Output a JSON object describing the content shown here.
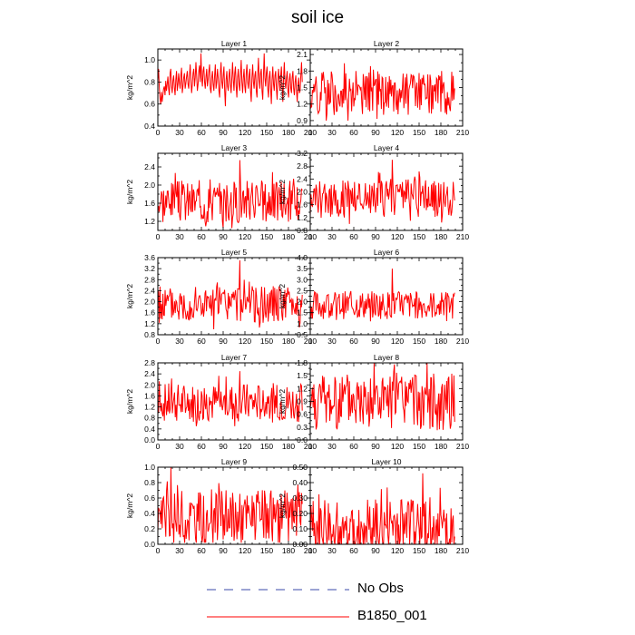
{
  "page": {
    "title": "soil ice"
  },
  "legend": {
    "items": [
      {
        "label": "No Obs",
        "color": "#3a4aa8",
        "style": "dashed"
      },
      {
        "label": "B1850_001",
        "color": "#ff0000",
        "style": "solid"
      }
    ]
  },
  "chart_data": [
    {
      "type": "line",
      "title": "Layer 1",
      "ylabel": "kg/m^2",
      "xlim": [
        0,
        210
      ],
      "ylim": [
        0.4,
        1.1
      ],
      "xticks": [
        0,
        30,
        60,
        90,
        120,
        150,
        180,
        210
      ],
      "yticks": [
        0.4,
        0.6,
        0.8,
        1.0
      ],
      "ytick_labels": [
        "0.4",
        "0.6",
        "0.8",
        "1.0"
      ],
      "series": [
        {
          "color": "#ff0000",
          "x_range": [
            0,
            199
          ],
          "mean": 0.82,
          "amp": 0.12,
          "min": 0.55,
          "max": 1.06,
          "values": [
            0.82,
            0.92,
            0.76,
            0.65,
            0.6,
            0.71,
            0.62,
            0.68,
            0.74,
            0.76,
            0.68,
            0.81,
            0.72,
            0.78,
            0.85,
            0.74,
            0.68,
            0.88,
            0.92,
            0.76,
            0.7,
            0.81,
            0.86,
            0.75,
            0.68,
            0.82,
            0.9,
            0.72,
            0.78,
            0.88,
            0.8,
            0.74,
            0.86,
            0.93,
            0.7,
            0.76,
            0.84,
            0.88,
            0.74,
            0.79,
            0.85,
            0.9,
            0.78,
            0.74,
            0.86,
            0.96,
            0.82,
            0.7,
            0.78,
            0.88,
            0.92,
            0.76,
            0.84,
            0.98,
            0.86,
            0.72,
            0.78,
            0.9,
            0.95,
            0.8,
            1.06,
            0.84,
            0.76,
            0.9,
            0.94,
            0.8,
            0.74,
            0.85,
            0.92,
            0.76,
            0.82,
            0.9,
            0.96,
            0.74,
            0.7,
            0.84,
            0.9,
            0.78,
            0.72,
            0.86,
            0.96,
            0.74,
            0.8,
            0.92,
            0.84,
            0.72,
            0.66,
            0.88,
            0.98,
            0.8,
            0.74,
            0.86,
            0.94,
            0.72,
            0.58,
            0.82,
            0.9,
            0.76,
            0.72,
            0.86,
            0.92,
            0.78,
            0.7,
            0.84,
            0.98,
            0.82,
            0.72,
            0.88,
            0.94,
            0.76,
            0.66,
            0.84,
            0.92,
            0.78,
            0.72,
            0.86,
            1.0,
            0.8,
            0.7,
            0.84,
            0.92,
            0.76,
            0.7,
            0.88,
            0.96,
            0.8,
            0.74,
            0.86,
            0.92,
            0.72,
            0.62,
            0.84,
            0.96,
            0.8,
            0.74,
            0.86,
            0.9,
            0.72,
            0.66,
            0.86,
            1.02,
            0.82,
            0.74,
            0.88,
            0.92,
            0.72,
            0.64,
            0.86,
            1.06,
            0.84,
            0.76,
            0.88,
            0.94,
            0.74,
            0.66,
            0.84,
            0.9,
            0.74,
            0.6,
            0.82,
            0.94,
            0.78,
            0.72,
            0.86,
            0.9,
            0.74,
            0.64,
            0.82,
            0.92,
            0.8,
            0.72,
            0.86,
            0.94,
            0.76,
            0.62,
            0.84,
            0.98,
            0.8,
            0.74,
            0.84,
            0.9,
            0.72,
            0.66,
            0.82,
            0.88,
            0.74,
            0.7,
            0.84,
            0.9,
            0.74,
            0.68,
            0.8,
            0.86,
            0.72,
            0.62,
            0.78,
            0.84,
            0.7,
            0.72,
            0.86,
            0.98,
            0.8
          ]
        }
      ]
    },
    {
      "type": "line",
      "title": "Layer 2",
      "ylabel": "kg/m^2",
      "xlim": [
        0,
        210
      ],
      "ylim": [
        0.8,
        2.2
      ],
      "xticks": [
        0,
        30,
        60,
        90,
        120,
        150,
        180,
        210
      ],
      "yticks": [
        0.9,
        1.2,
        1.5,
        1.8,
        2.1
      ],
      "ytick_labels": [
        "0.9",
        "1.2",
        "1.5",
        "1.8",
        "2.1"
      ],
      "series": [
        {
          "color": "#ff0000",
          "x_range": [
            0,
            199
          ],
          "mean": 1.4,
          "amp": 0.25,
          "min": 0.9,
          "max": 2.0,
          "seed": 2
        }
      ]
    },
    {
      "type": "line",
      "title": "Layer 3",
      "ylabel": "kg/m^2",
      "xlim": [
        0,
        210
      ],
      "ylim": [
        1.0,
        2.7
      ],
      "xticks": [
        0,
        30,
        60,
        90,
        120,
        150,
        180,
        210
      ],
      "yticks": [
        1.2,
        1.6,
        2.0,
        2.4
      ],
      "ytick_labels": [
        "1.2",
        "1.6",
        "2.0",
        "2.4"
      ],
      "series": [
        {
          "color": "#ff0000",
          "x_range": [
            0,
            199
          ],
          "mean": 1.65,
          "amp": 0.3,
          "min": 1.05,
          "max": 2.55,
          "seed": 3,
          "spike": [
            113,
            2.55
          ]
        }
      ]
    },
    {
      "type": "line",
      "title": "Layer 4",
      "ylabel": "kg/m^2",
      "xlim": [
        0,
        210
      ],
      "ylim": [
        0.8,
        3.2
      ],
      "xticks": [
        0,
        30,
        60,
        90,
        120,
        150,
        180,
        210
      ],
      "yticks": [
        0.8,
        1.2,
        1.6,
        2.0,
        2.4,
        2.8,
        3.2
      ],
      "ytick_labels": [
        "0.8",
        "1.2",
        "1.6",
        "2.0",
        "2.4",
        "2.8",
        "3.2"
      ],
      "series": [
        {
          "color": "#ff0000",
          "x_range": [
            0,
            199
          ],
          "mean": 1.8,
          "amp": 0.38,
          "min": 1.0,
          "max": 3.0,
          "seed": 4,
          "spike": [
            113,
            3.0
          ]
        }
      ]
    },
    {
      "type": "line",
      "title": "Layer 5",
      "ylabel": "kg/m^2",
      "xlim": [
        0,
        210
      ],
      "ylim": [
        0.8,
        3.6
      ],
      "xticks": [
        0,
        30,
        60,
        90,
        120,
        150,
        180,
        210
      ],
      "yticks": [
        0.8,
        1.2,
        1.6,
        2.0,
        2.4,
        2.8,
        3.2,
        3.6
      ],
      "ytick_labels": [
        "0.8",
        "1.2",
        "1.6",
        "2.0",
        "2.4",
        "2.8",
        "3.2",
        "3.6"
      ],
      "series": [
        {
          "color": "#ff0000",
          "x_range": [
            0,
            199
          ],
          "mean": 1.9,
          "amp": 0.42,
          "min": 1.0,
          "max": 3.5,
          "seed": 5,
          "spike": [
            113,
            3.5
          ]
        }
      ]
    },
    {
      "type": "line",
      "title": "Layer 6",
      "ylabel": "kg/m^2",
      "xlim": [
        0,
        210
      ],
      "ylim": [
        0.5,
        4.0
      ],
      "xticks": [
        0,
        30,
        60,
        90,
        120,
        150,
        180,
        210
      ],
      "yticks": [
        0.5,
        1.0,
        1.5,
        2.0,
        2.5,
        3.0,
        3.5,
        4.0
      ],
      "ytick_labels": [
        "0.5",
        "1.0",
        "1.5",
        "2.0",
        "2.5",
        "3.0",
        "3.5",
        "4.0"
      ],
      "series": [
        {
          "color": "#ff0000",
          "x_range": [
            0,
            199
          ],
          "mean": 1.85,
          "amp": 0.4,
          "min": 1.0,
          "max": 3.5,
          "seed": 6,
          "spike": [
            113,
            3.5
          ]
        }
      ]
    },
    {
      "type": "line",
      "title": "Layer 7",
      "ylabel": "kg/m^2",
      "xlim": [
        0,
        210
      ],
      "ylim": [
        0.0,
        2.8
      ],
      "xticks": [
        0,
        30,
        60,
        90,
        120,
        150,
        180,
        210
      ],
      "yticks": [
        0.0,
        0.4,
        0.8,
        1.2,
        1.6,
        2.0,
        2.4,
        2.8
      ],
      "ytick_labels": [
        "0.0",
        "0.4",
        "0.8",
        "1.2",
        "1.6",
        "2.0",
        "2.4",
        "2.8"
      ],
      "series": [
        {
          "color": "#ff0000",
          "x_range": [
            0,
            199
          ],
          "mean": 1.35,
          "amp": 0.45,
          "min": 0.5,
          "max": 2.5,
          "seed": 7,
          "spike": [
            113,
            2.5
          ]
        }
      ]
    },
    {
      "type": "line",
      "title": "Layer 8",
      "ylabel": "kg/m^2",
      "xlim": [
        0,
        210
      ],
      "ylim": [
        0.0,
        1.8
      ],
      "xticks": [
        0,
        30,
        60,
        90,
        120,
        150,
        180,
        210
      ],
      "yticks": [
        0.0,
        0.3,
        0.6,
        0.9,
        1.2,
        1.5,
        1.8
      ],
      "ytick_labels": [
        "0.0",
        "0.3",
        "0.6",
        "0.9",
        "1.2",
        "1.5",
        "1.8"
      ],
      "series": [
        {
          "color": "#ff0000",
          "x_range": [
            0,
            199
          ],
          "mean": 0.9,
          "amp": 0.42,
          "min": 0.2,
          "max": 1.8,
          "seed": 8,
          "spike": [
            88,
            1.8
          ]
        }
      ]
    },
    {
      "type": "line",
      "title": "Layer 9",
      "ylabel": "kg/m^2",
      "xlim": [
        0,
        210
      ],
      "ylim": [
        0.0,
        1.0
      ],
      "xticks": [
        0,
        30,
        60,
        90,
        120,
        150,
        180,
        210
      ],
      "yticks": [
        0.0,
        0.2,
        0.4,
        0.6,
        0.8,
        1.0
      ],
      "ytick_labels": [
        "0.0",
        "0.2",
        "0.4",
        "0.6",
        "0.8",
        "1.0"
      ],
      "series": [
        {
          "color": "#ff0000",
          "x_range": [
            0,
            199
          ],
          "mean": 0.35,
          "amp": 0.22,
          "min": 0.02,
          "max": 1.0,
          "seed": 9,
          "spike": [
            18,
            1.0
          ]
        }
      ]
    },
    {
      "type": "line",
      "title": "Layer 10",
      "ylabel": "kg/m^2",
      "xlim": [
        0,
        210
      ],
      "ylim": [
        0.0,
        0.5
      ],
      "xticks": [
        0,
        30,
        60,
        90,
        120,
        150,
        180,
        210
      ],
      "yticks": [
        0.0,
        0.1,
        0.2,
        0.3,
        0.4,
        0.5
      ],
      "ytick_labels": [
        "0.00",
        "0.10",
        "0.20",
        "0.30",
        "0.40",
        "0.50"
      ],
      "series": [
        {
          "color": "#ff0000",
          "x_range": [
            0,
            199
          ],
          "mean": 0.1,
          "amp": 0.12,
          "min": 0.0,
          "max": 0.46,
          "seed": 10,
          "spike": [
            155,
            0.46
          ]
        }
      ]
    }
  ]
}
